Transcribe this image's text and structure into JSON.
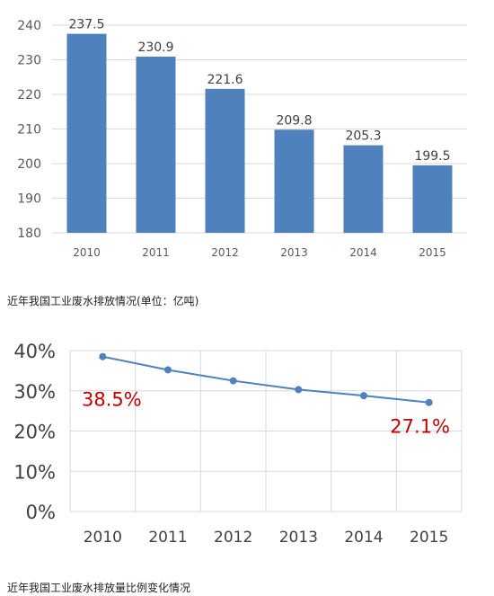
{
  "chart_data": [
    {
      "type": "bar",
      "categories": [
        "2010",
        "2011",
        "2012",
        "2013",
        "2014",
        "2015"
      ],
      "values": [
        237.5,
        230.9,
        221.6,
        209.8,
        205.3,
        199.5
      ],
      "data_labels": [
        "237.5",
        "230.9",
        "221.6",
        "209.8",
        "205.3",
        "199.5"
      ],
      "ylim": [
        180,
        240
      ],
      "yticks": [
        "180",
        "190",
        "200",
        "210",
        "220",
        "230",
        "240"
      ],
      "grid": true,
      "title": "",
      "xlabel": "",
      "ylabel": "",
      "bar_color": "#4f81bd"
    },
    {
      "type": "line",
      "categories": [
        "2010",
        "2011",
        "2012",
        "2013",
        "2014",
        "2015"
      ],
      "values": [
        38.5,
        35.2,
        32.5,
        30.3,
        28.8,
        27.1
      ],
      "ylim": [
        0,
        40
      ],
      "yticks": [
        "0%",
        "10%",
        "20%",
        "30%",
        "40%"
      ],
      "annotations": [
        "38.5%",
        "27.1%"
      ],
      "grid": true,
      "title": "",
      "xlabel": "",
      "ylabel": "",
      "line_color": "#4f81bd",
      "annotation_color": "#c00000"
    }
  ],
  "captions": {
    "bar": "近年我国工业废水排放情况(单位：亿吨)",
    "line": "近年我国工业废水排放量比例变化情况"
  }
}
